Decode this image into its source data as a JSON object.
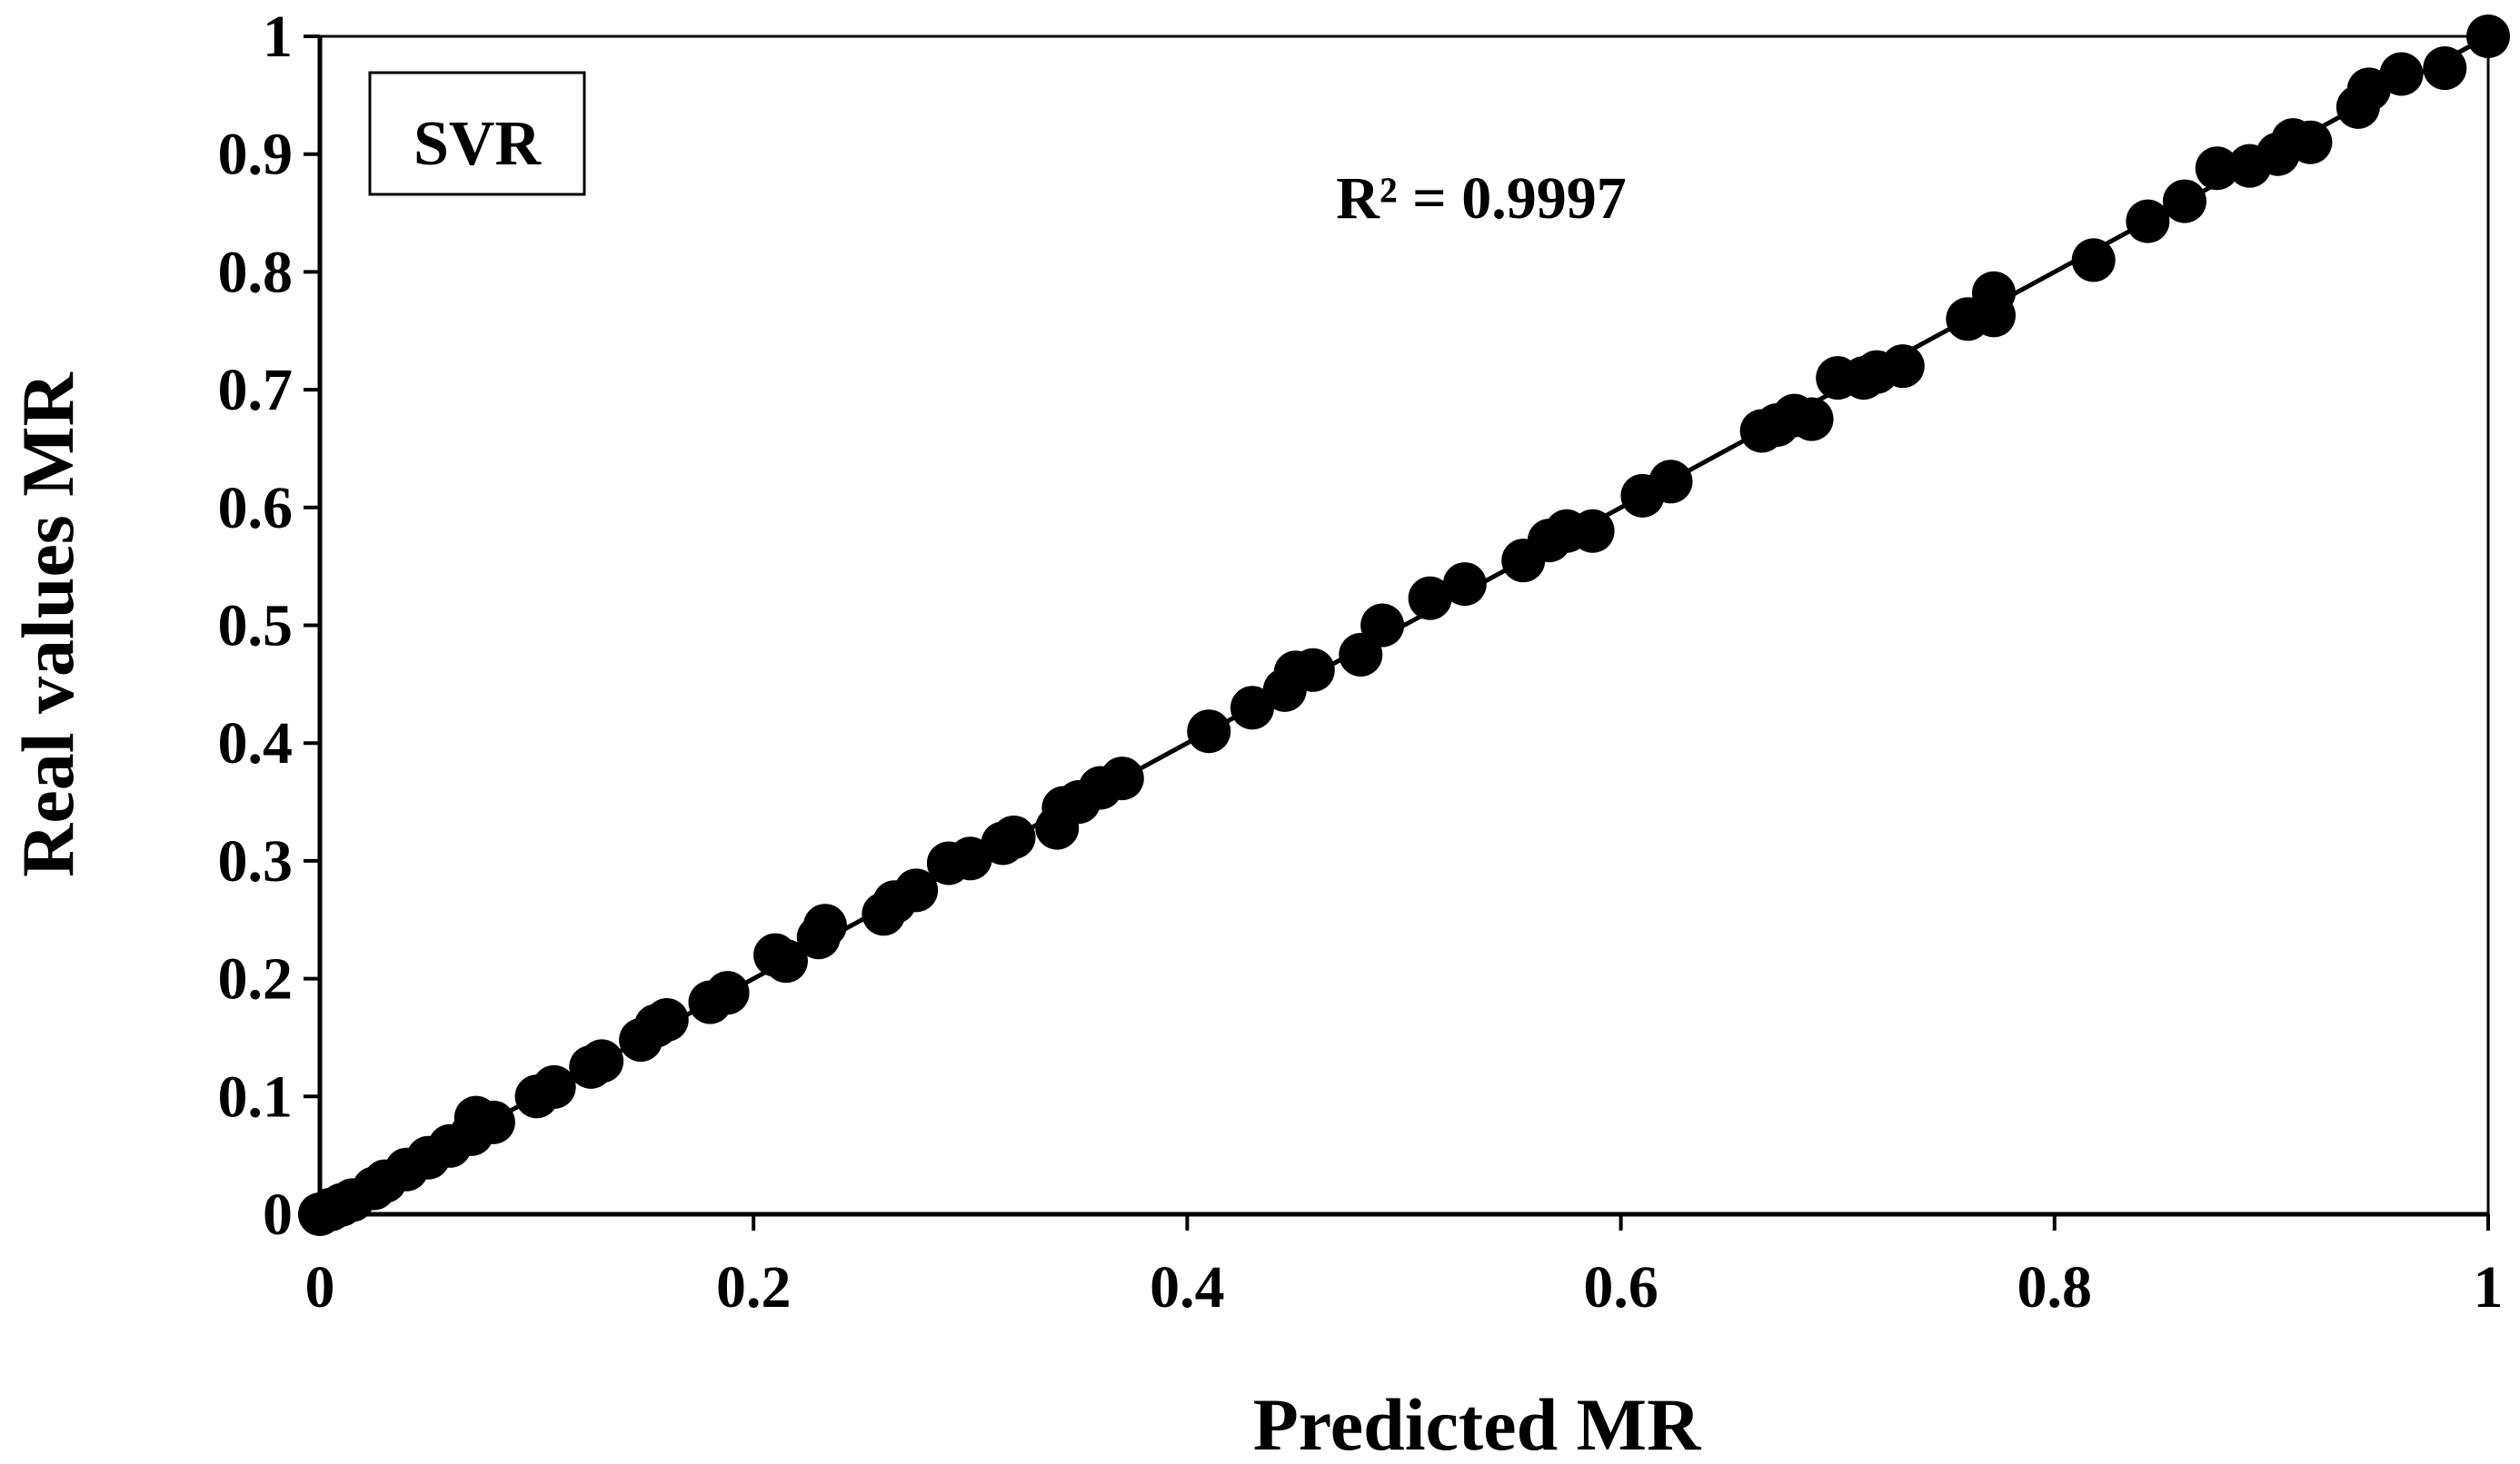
{
  "chart_data": {
    "type": "scatter",
    "xlabel": "Predicted MR",
    "ylabel": "Real values MR",
    "xlim": [
      0,
      1
    ],
    "ylim": [
      0,
      1
    ],
    "x_ticks": [
      "0",
      "0.2",
      "0.4",
      "0.6",
      "0.8",
      "1"
    ],
    "y_ticks": [
      "0",
      "0.1",
      "0.2",
      "0.3",
      "0.4",
      "0.5",
      "0.6",
      "0.7",
      "0.8",
      "0.9",
      "1"
    ],
    "legend": {
      "label": "SVR",
      "placement": "top-left"
    },
    "annotation": "R² = 0.9997",
    "grid": false,
    "trendline": {
      "x": [
        0,
        1
      ],
      "y": [
        0,
        1
      ]
    },
    "colors": {
      "marker": "#000000",
      "line": "#000000",
      "axis": "#000000"
    },
    "series": [
      {
        "points": [
          [
            0.0,
            0.0
          ],
          [
            0.005,
            0.004
          ],
          [
            0.01,
            0.008
          ],
          [
            0.015,
            0.012
          ],
          [
            0.025,
            0.022
          ],
          [
            0.03,
            0.028
          ],
          [
            0.04,
            0.038
          ],
          [
            0.05,
            0.048
          ],
          [
            0.06,
            0.058
          ],
          [
            0.07,
            0.068
          ],
          [
            0.072,
            0.082
          ],
          [
            0.08,
            0.078
          ],
          [
            0.1,
            0.1
          ],
          [
            0.108,
            0.108
          ],
          [
            0.125,
            0.125
          ],
          [
            0.13,
            0.13
          ],
          [
            0.148,
            0.148
          ],
          [
            0.155,
            0.16
          ],
          [
            0.16,
            0.165
          ],
          [
            0.18,
            0.18
          ],
          [
            0.188,
            0.188
          ],
          [
            0.21,
            0.22
          ],
          [
            0.215,
            0.215
          ],
          [
            0.23,
            0.235
          ],
          [
            0.233,
            0.245
          ],
          [
            0.26,
            0.255
          ],
          [
            0.265,
            0.265
          ],
          [
            0.275,
            0.275
          ],
          [
            0.29,
            0.298
          ],
          [
            0.3,
            0.302
          ],
          [
            0.315,
            0.315
          ],
          [
            0.32,
            0.32
          ],
          [
            0.34,
            0.328
          ],
          [
            0.343,
            0.345
          ],
          [
            0.35,
            0.35
          ],
          [
            0.36,
            0.362
          ],
          [
            0.37,
            0.37
          ],
          [
            0.41,
            0.41
          ],
          [
            0.43,
            0.43
          ],
          [
            0.445,
            0.445
          ],
          [
            0.45,
            0.46
          ],
          [
            0.458,
            0.462
          ],
          [
            0.48,
            0.475
          ],
          [
            0.49,
            0.5
          ],
          [
            0.512,
            0.523
          ],
          [
            0.528,
            0.535
          ],
          [
            0.555,
            0.555
          ],
          [
            0.567,
            0.572
          ],
          [
            0.575,
            0.58
          ],
          [
            0.587,
            0.58
          ],
          [
            0.61,
            0.61
          ],
          [
            0.623,
            0.622
          ],
          [
            0.665,
            0.665
          ],
          [
            0.672,
            0.67
          ],
          [
            0.68,
            0.678
          ],
          [
            0.688,
            0.675
          ],
          [
            0.7,
            0.71
          ],
          [
            0.712,
            0.71
          ],
          [
            0.718,
            0.715
          ],
          [
            0.73,
            0.72
          ],
          [
            0.76,
            0.76
          ],
          [
            0.772,
            0.782
          ],
          [
            0.772,
            0.763
          ],
          [
            0.818,
            0.81
          ],
          [
            0.843,
            0.843
          ],
          [
            0.86,
            0.86
          ],
          [
            0.875,
            0.888
          ],
          [
            0.89,
            0.89
          ],
          [
            0.903,
            0.9
          ],
          [
            0.91,
            0.912
          ],
          [
            0.918,
            0.91
          ],
          [
            0.94,
            0.94
          ],
          [
            0.945,
            0.955
          ],
          [
            0.96,
            0.968
          ],
          [
            0.98,
            0.973
          ],
          [
            1.0,
            1.0
          ]
        ]
      }
    ]
  }
}
